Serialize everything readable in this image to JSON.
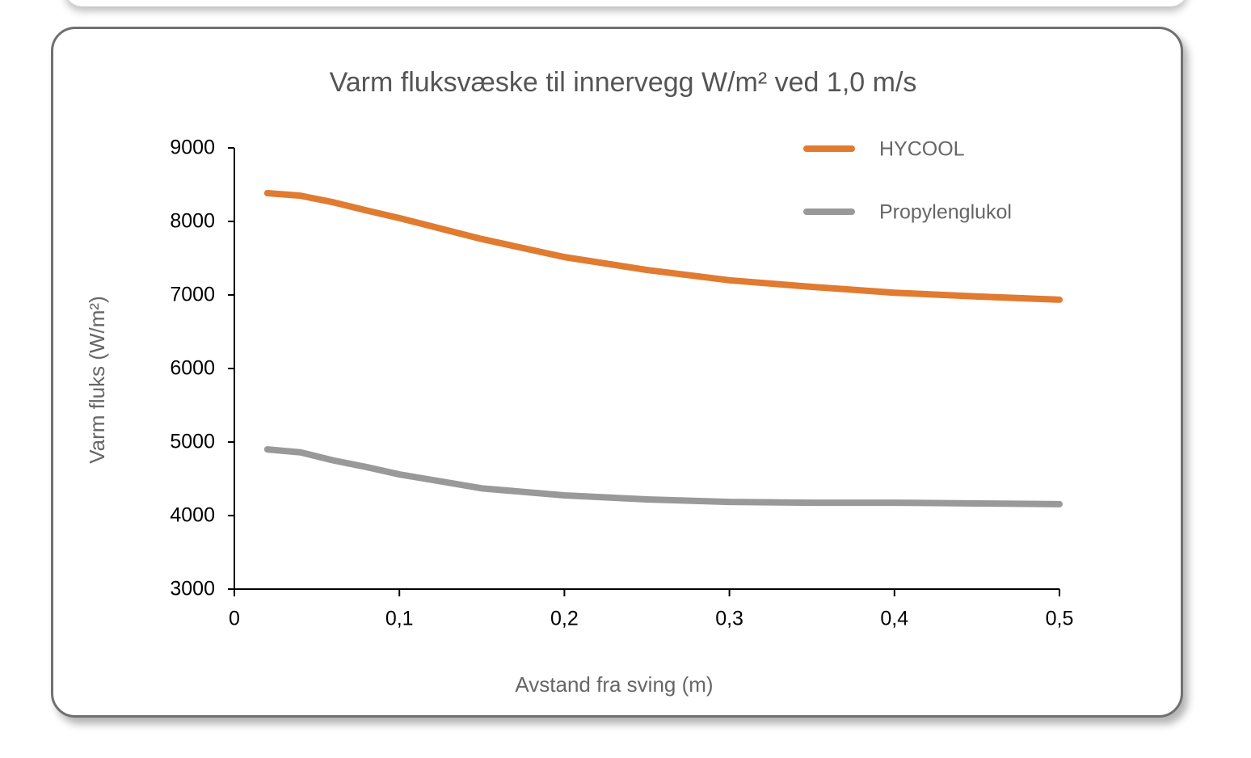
{
  "chart_data": {
    "type": "line",
    "title": "Varm fluksvæske til innervegg W/m² ved 1,0 m/s",
    "x_label": "Avstand fra sving (m)",
    "y_label": "Varm fluks (W/m²)",
    "x": [
      0.02,
      0.04,
      0.06,
      0.08,
      0.1,
      0.15,
      0.2,
      0.25,
      0.3,
      0.35,
      0.4,
      0.45,
      0.5
    ],
    "series": [
      {
        "name": "HYCOOL",
        "color": "#e07b30",
        "values": [
          8385,
          8350,
          8260,
          8150,
          8045,
          7760,
          7515,
          7340,
          7200,
          7110,
          7030,
          6980,
          6935
        ]
      },
      {
        "name": "Propylenglukol",
        "color": "#999999",
        "values": [
          4900,
          4860,
          4750,
          4660,
          4560,
          4370,
          4275,
          4220,
          4185,
          4175,
          4175,
          4165,
          4155
        ]
      }
    ],
    "xlim": [
      0,
      0.5
    ],
    "xticks": [
      0,
      {
        "value": 0.1,
        "label": "0,1"
      },
      {
        "value": 0.2,
        "label": "0,2"
      },
      {
        "value": 0.3,
        "label": "0,3"
      },
      {
        "value": 0.4,
        "label": "0,4"
      },
      {
        "value": 0.5,
        "label": "0,5"
      }
    ],
    "ylim": [
      3000,
      9000
    ],
    "yticks": [
      3000,
      4000,
      5000,
      6000,
      7000,
      8000,
      9000
    ],
    "legend": "top-right"
  }
}
